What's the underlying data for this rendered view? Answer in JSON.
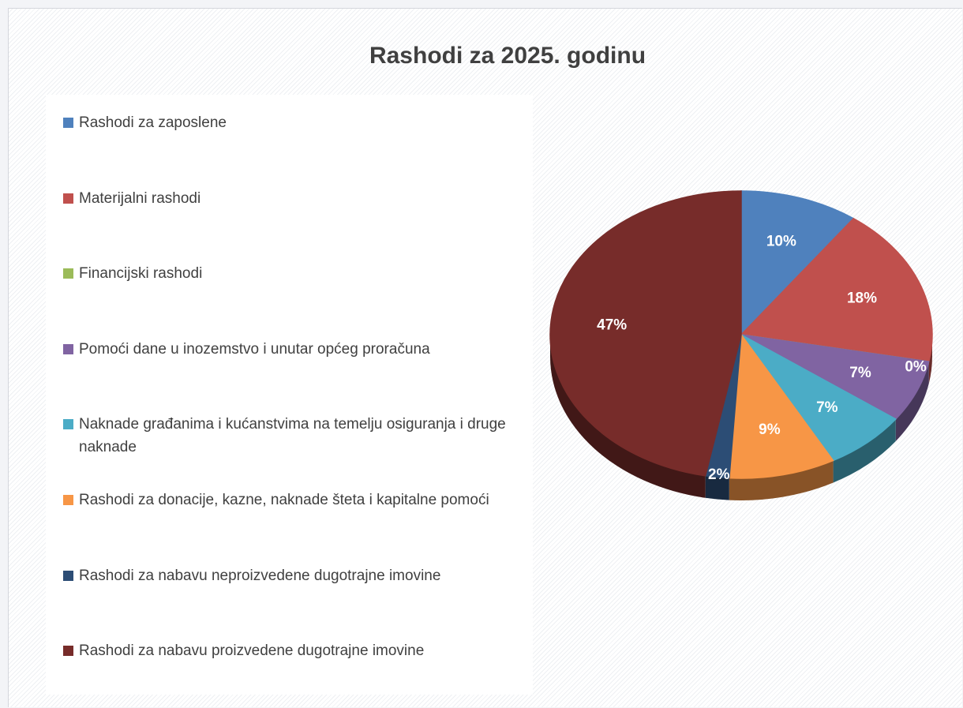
{
  "chart_data": {
    "type": "pie",
    "title": "Rashodi za 2025. godinu",
    "categories": [
      "Rashodi za zaposlene",
      "Materijalni rashodi",
      "Financijski rashodi",
      "Pomoći dane u inozemstvo i unutar općeg proračuna",
      "Naknade građanima i kućanstvima na temelju osiguranja i druge naknade",
      "Rashodi za donacije, kazne, naknade šteta i kapitalne pomoći",
      "Rashodi za nabavu neproizvedene dugotrajne imovine",
      "Rashodi za nabavu proizvedene dugotrajne imovine"
    ],
    "values": [
      10,
      18,
      0,
      7,
      7,
      9,
      2,
      47
    ],
    "value_labels": [
      "10%",
      "18%",
      "0%",
      "7%",
      "7%",
      "9%",
      "2%",
      "47%"
    ],
    "colors": [
      "#4f81bd",
      "#c0504d",
      "#9bbb59",
      "#8064a2",
      "#4bacc6",
      "#f79646",
      "#2c4d75",
      "#772c2a"
    ],
    "legend": "left"
  }
}
